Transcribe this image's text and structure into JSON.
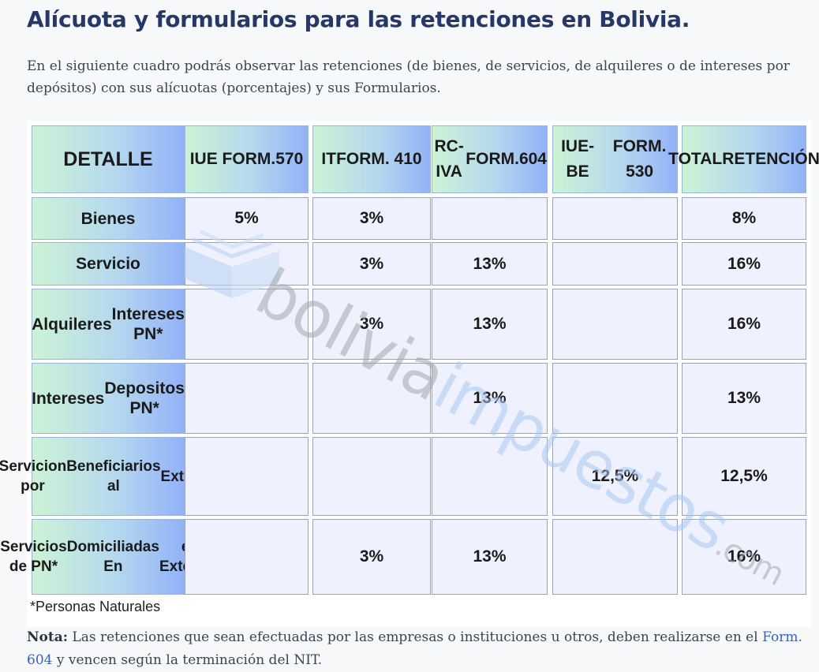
{
  "title": "Alícuota y formularios para las retenciones en Bolivia.",
  "intro": "En el siguiente cuadro podrás observar las retenciones (de bienes, de servicios, de alquileres o de intereses por depósitos) con sus alícuotas (porcentajes) y sus Formularios.",
  "table": {
    "headers": [
      [
        "DETALLE"
      ],
      [
        "IUE FORM.",
        "570"
      ],
      [
        "IT",
        "FORM. 410"
      ],
      [
        "RC-IVA",
        "FORM.604"
      ],
      [
        "IUE-BE",
        "FORM. 530"
      ],
      [
        "TOTAL",
        "RETENCIÓN"
      ]
    ],
    "rows": [
      {
        "label": [
          "Bienes"
        ],
        "cells": [
          "5%",
          "3%",
          "",
          "",
          "8%"
        ]
      },
      {
        "label": [
          "Servicio"
        ],
        "cells": [
          "",
          "3%",
          "13%",
          "",
          "16%"
        ]
      },
      {
        "label": [
          "Alquileres",
          "Intereses PN*"
        ],
        "cells": [
          "",
          "3%",
          "13%",
          "",
          "16%"
        ]
      },
      {
        "label": [
          "Intereses",
          "Depositos PN*"
        ],
        "cells": [
          "",
          "",
          "13%",
          "",
          "13%"
        ]
      },
      {
        "label": [
          "Servicion por",
          "Beneficiarios al",
          "Exterior"
        ],
        "cells": [
          "",
          "",
          "",
          "12,5%",
          "12,5%"
        ]
      },
      {
        "label": [
          "Servicios de  PN*",
          "Domiciliadas En",
          "el Exterior"
        ],
        "cells": [
          "",
          "3%",
          "13%",
          "",
          "16%"
        ]
      }
    ],
    "footnote": "*Personas Naturales",
    "watermark": {
      "part1": "bolivia",
      "part2": "impuestos",
      "part3": ".com"
    }
  },
  "nota": {
    "label": "Nota:",
    "text_before": " Las retenciones que sean efectuadas por las empresas o instituciones u otros, deben realizarse en el ",
    "link": "Form. 604",
    "text_after": " y vencen según la terminación del NIT."
  },
  "colors": {
    "title": "#263868",
    "link": "#3a62b4",
    "header_gradient_start": "#ccf3d6",
    "header_gradient_end": "#92b2f8",
    "data_cell": "#eff2fe"
  }
}
